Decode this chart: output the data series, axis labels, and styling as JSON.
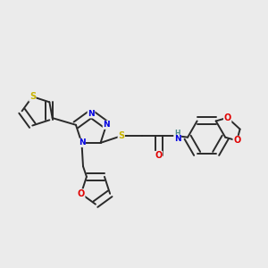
{
  "background_color": "#ebebeb",
  "bond_color": "#2a2a2a",
  "atom_colors": {
    "S": "#c8b400",
    "N": "#0000e0",
    "O": "#e00000",
    "H": "#4a8888",
    "C": "#2a2a2a",
    "bond": "#2a2a2a"
  }
}
